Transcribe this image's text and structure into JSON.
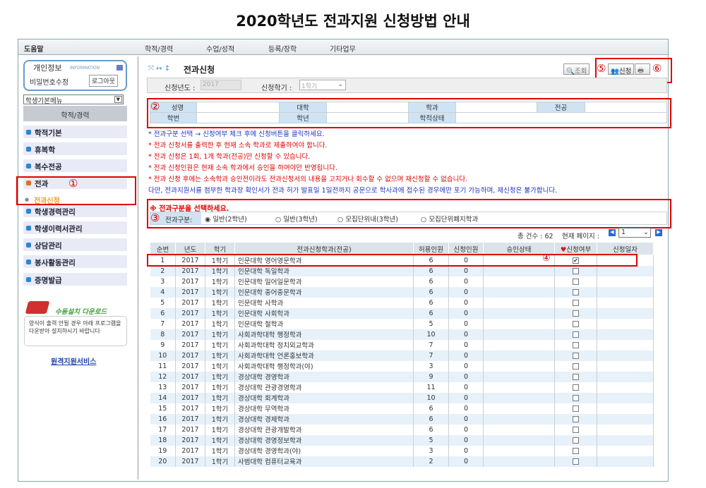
{
  "title": "2020학년도 전과지원 신청방법 안내",
  "menubar": {
    "help": "도움말",
    "items": [
      "학적/경력",
      "수업/성적",
      "등록/장학",
      "기타업무"
    ]
  },
  "sidebar": {
    "info_title": "개인정보",
    "info_sub": "INFORMATION",
    "password": "비밀번호수정",
    "logout": "로그아웃",
    "menu_select": "학생기본메뉴",
    "section": "학적/경력",
    "items": [
      "학적기본",
      "휴복학",
      "복수전공",
      "전과",
      "전과신청",
      "학생경력관리",
      "학생이력서관리",
      "상담관리",
      "봉사활동관리",
      "증명발급"
    ],
    "download_title": "수동설치 다운로드",
    "download_text": "양식이 출력 안될 경우 아래 프로그램을 다운받아 설치하시기 바랍니다",
    "remote": "원격지원서비스"
  },
  "main": {
    "page_title": "전과신청",
    "btn_search": "조회",
    "btn_apply": "신청",
    "btn_print": "출력",
    "year_label": "신청년도 :",
    "year_value": "2017",
    "term_label": "신청학기 :",
    "term_value": "1학기",
    "info_labels": [
      "성명",
      "대학",
      "학과",
      "전공",
      "학번",
      "학년",
      "학적상태"
    ],
    "notes": [
      "* 전과구분 선택 → 신청여부 체크 후에 신청버튼을 클릭하세요.",
      "* 전과 신청서를 출력한 후 현재 소속 학과로 제출하여야 합니다.",
      "* 전과 신청은 1회, 1개 학과(전공)만 신청할 수 있습니다.",
      "* 전과 신청인원은 현재 소속 학과에서 승인을 하여야만 반영됩니다.",
      "* 전과 신청 후에는 소속학과 승인전이라도 전과신청서의 내용을 고치거나 회수할 수 없으며 재신청할 수 없습니다.",
      "다만, 전과지원서를 첨부한 학과장 확인서가 전과 허가 발표일 1일전까지 공문으로 학사과에 접수된 경우에만 포기 가능하며, 재신청은 불가합니다."
    ],
    "select_prompt": "※ 전과구분을 선택하세요.",
    "type_label": "전과구분:",
    "types": [
      "일반(2학년)",
      "일반(3학년)",
      "모집단위내(3학년)",
      "모집단위폐지학과"
    ],
    "type_selected": 0,
    "total": "총 건수 : 62",
    "page_label": "현재 페이지 :",
    "page_value": "1",
    "columns": [
      "순번",
      "년도",
      "학기",
      "전과신청학과(전공)",
      "허용인원",
      "신청인원",
      "승인상태",
      "신청여부",
      "신청일자"
    ],
    "rows": [
      [
        "1",
        "2017",
        "1학기",
        "인문대학 영어영문학과",
        "6",
        "0",
        true
      ],
      [
        "2",
        "2017",
        "1학기",
        "인문대학 독일학과",
        "6",
        "0",
        false
      ],
      [
        "3",
        "2017",
        "1학기",
        "인문대학 일어일문학과",
        "6",
        "0",
        false
      ],
      [
        "4",
        "2017",
        "1학기",
        "인문대학 중어중문학과",
        "6",
        "0",
        false
      ],
      [
        "5",
        "2017",
        "1학기",
        "인문대학 사학과",
        "6",
        "0",
        false
      ],
      [
        "6",
        "2017",
        "1학기",
        "인문대학 사회학과",
        "6",
        "0",
        false
      ],
      [
        "7",
        "2017",
        "1학기",
        "인문대학 철학과",
        "5",
        "0",
        false
      ],
      [
        "8",
        "2017",
        "1학기",
        "사회과학대학 행정학과",
        "10",
        "0",
        false
      ],
      [
        "9",
        "2017",
        "1학기",
        "사회과학대학 정치외교학과",
        "7",
        "0",
        false
      ],
      [
        "10",
        "2017",
        "1학기",
        "사회과학대학 언론홍보학과",
        "7",
        "0",
        false
      ],
      [
        "11",
        "2017",
        "1학기",
        "사회과학대학 행정학과(야)",
        "3",
        "0",
        false
      ],
      [
        "12",
        "2017",
        "1학기",
        "경상대학 경영학과",
        "9",
        "0",
        false
      ],
      [
        "13",
        "2017",
        "1학기",
        "경상대학 관광경영학과",
        "11",
        "0",
        false
      ],
      [
        "14",
        "2017",
        "1학기",
        "경상대학 회계학과",
        "10",
        "0",
        false
      ],
      [
        "15",
        "2017",
        "1학기",
        "경상대학 무역학과",
        "6",
        "0",
        false
      ],
      [
        "16",
        "2017",
        "1학기",
        "경상대학 경제학과",
        "6",
        "0",
        false
      ],
      [
        "17",
        "2017",
        "1학기",
        "경상대학 관광개발학과",
        "6",
        "0",
        false
      ],
      [
        "18",
        "2017",
        "1학기",
        "경상대학 경영정보학과",
        "5",
        "0",
        false
      ],
      [
        "19",
        "2017",
        "1학기",
        "경상대학 경영학과(야)",
        "3",
        "0",
        false
      ],
      [
        "20",
        "2017",
        "1학기",
        "사범대학 컴퓨터교육과",
        "2",
        "0",
        false
      ]
    ]
  },
  "annotations": [
    "①",
    "②",
    "③",
    "④",
    "⑤",
    "⑥"
  ]
}
